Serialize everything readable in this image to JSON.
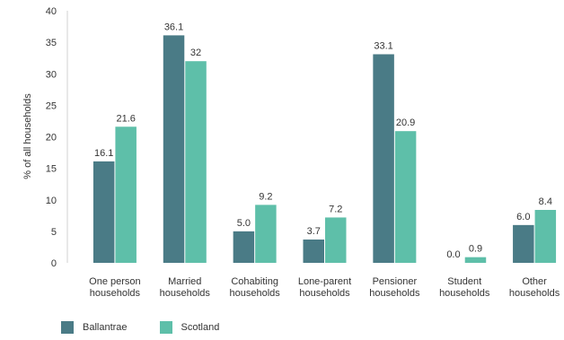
{
  "chart_data": {
    "type": "bar",
    "ylabel": "% of all households",
    "ylim": [
      0,
      40
    ],
    "yticks": [
      0,
      5,
      10,
      15,
      20,
      25,
      30,
      35,
      40
    ],
    "grid": false,
    "legend_position": "bottom-left",
    "categories": [
      [
        "One person",
        "households"
      ],
      [
        "Married",
        "households"
      ],
      [
        "Cohabiting",
        "households"
      ],
      [
        "Lone-parent",
        "households"
      ],
      [
        "Pensioner",
        "households"
      ],
      [
        "Student",
        "households"
      ],
      [
        "Other",
        "households"
      ]
    ],
    "series": [
      {
        "name": "Ballantrae",
        "color": "#4a7b86",
        "values": [
          16.1,
          36.1,
          5.0,
          3.7,
          33.1,
          0.0,
          6.0
        ],
        "labels": [
          "16.1",
          "36.1",
          "5.0",
          "3.7",
          "33.1",
          "0.0",
          "6.0"
        ]
      },
      {
        "name": "Scotland",
        "color": "#5ebfa9",
        "values": [
          21.6,
          32,
          9.2,
          7.2,
          20.9,
          0.9,
          8.4
        ],
        "labels": [
          "21.6",
          "32",
          "9.2",
          "7.2",
          "20.9",
          "0.9",
          "8.4"
        ]
      }
    ]
  }
}
